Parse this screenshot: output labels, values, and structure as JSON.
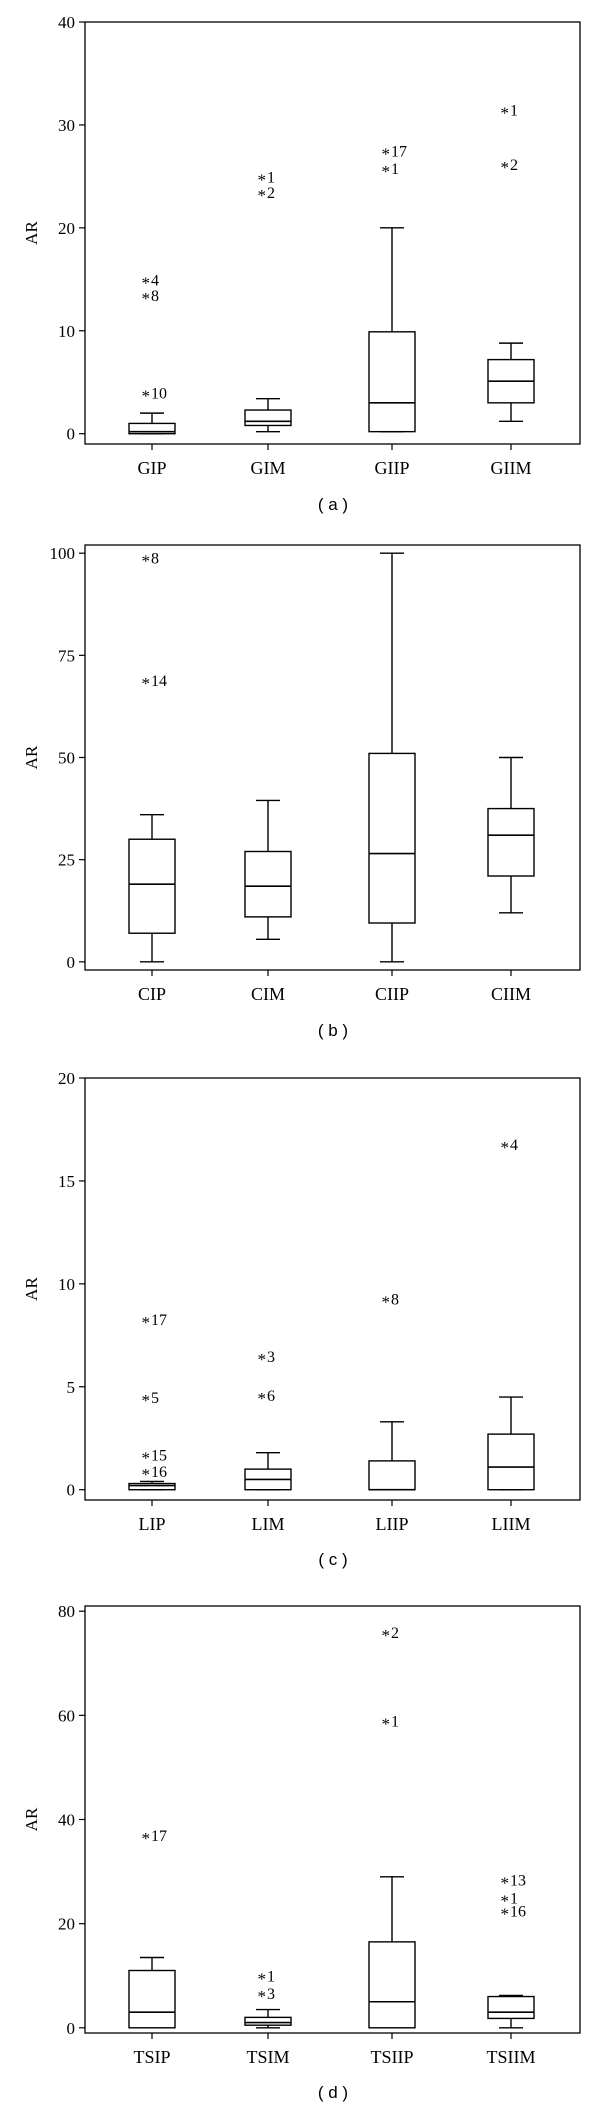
{
  "chart_data": [
    {
      "type": "boxplot",
      "panel_label": "( a )",
      "ylabel": "AR",
      "ylim": [
        -1,
        40
      ],
      "yticks": [
        0,
        10,
        20,
        30,
        40
      ],
      "categories": [
        "GIP",
        "GIM",
        "GIIP",
        "GIIM"
      ],
      "boxes": [
        {
          "category": "GIP",
          "whisker_low": 0,
          "q1": 0,
          "median": 0.2,
          "q3": 1,
          "whisker_high": 2
        },
        {
          "category": "GIM",
          "whisker_low": 0.2,
          "q1": 0.8,
          "median": 1.2,
          "q3": 2.3,
          "whisker_high": 3.4
        },
        {
          "category": "GIIP",
          "whisker_low": 0.2,
          "q1": 0.2,
          "median": 3,
          "q3": 9.9,
          "whisker_high": 20
        },
        {
          "category": "GIIM",
          "whisker_low": 1.2,
          "q1": 3,
          "median": 5.1,
          "q3": 7.2,
          "whisker_high": 8.8
        }
      ],
      "outliers": [
        {
          "category": "GIP",
          "value": 15,
          "label": "4"
        },
        {
          "category": "GIP",
          "value": 13.5,
          "label": "8"
        },
        {
          "category": "GIP",
          "value": 4,
          "label": "10"
        },
        {
          "category": "GIM",
          "value": 25,
          "label": "1"
        },
        {
          "category": "GIM",
          "value": 23.5,
          "label": "2"
        },
        {
          "category": "GIIP",
          "value": 27.5,
          "label": "17"
        },
        {
          "category": "GIIP",
          "value": 25.8,
          "label": "1"
        },
        {
          "category": "GIIM",
          "value": 31.5,
          "label": "1"
        },
        {
          "category": "GIIM",
          "value": 26.2,
          "label": "2"
        }
      ]
    },
    {
      "type": "boxplot",
      "panel_label": "( b )",
      "ylabel": "AR",
      "ylim": [
        -2,
        102
      ],
      "yticks": [
        0,
        25,
        50,
        75,
        100
      ],
      "categories": [
        "CIP",
        "CIM",
        "CIIP",
        "CIIM"
      ],
      "boxes": [
        {
          "category": "CIP",
          "whisker_low": 0,
          "q1": 7,
          "median": 19,
          "q3": 30,
          "whisker_high": 36
        },
        {
          "category": "CIM",
          "whisker_low": 5.5,
          "q1": 11,
          "median": 18.5,
          "q3": 27,
          "whisker_high": 39.5
        },
        {
          "category": "CIIP",
          "whisker_low": 0,
          "q1": 9.5,
          "median": 26.5,
          "q3": 51,
          "whisker_high": 100
        },
        {
          "category": "CIIM",
          "whisker_low": 12,
          "q1": 21,
          "median": 31,
          "q3": 37.5,
          "whisker_high": 50
        }
      ],
      "outliers": [
        {
          "category": "CIP",
          "value": 99,
          "label": "8"
        },
        {
          "category": "CIP",
          "value": 69,
          "label": "14"
        }
      ]
    },
    {
      "type": "boxplot",
      "panel_label": "( c )",
      "ylabel": "AR",
      "ylim": [
        -0.5,
        20
      ],
      "yticks": [
        0,
        5,
        10,
        15,
        20
      ],
      "categories": [
        "LIP",
        "LIM",
        "LIIP",
        "LIIM"
      ],
      "boxes": [
        {
          "category": "LIP",
          "whisker_low": 0,
          "q1": 0,
          "median": 0.2,
          "q3": 0.3,
          "whisker_high": 0.4
        },
        {
          "category": "LIM",
          "whisker_low": 0,
          "q1": 0,
          "median": 0.5,
          "q3": 1,
          "whisker_high": 1.8
        },
        {
          "category": "LIIP",
          "whisker_low": 0,
          "q1": 0,
          "median": 0,
          "q3": 1.4,
          "whisker_high": 3.3
        },
        {
          "category": "LIIM",
          "whisker_low": 0,
          "q1": 0,
          "median": 1.1,
          "q3": 2.7,
          "whisker_high": 4.5
        }
      ],
      "outliers": [
        {
          "category": "LIP",
          "value": 8.3,
          "label": "17"
        },
        {
          "category": "LIP",
          "value": 4.5,
          "label": "5"
        },
        {
          "category": "LIP",
          "value": 1.7,
          "label": "15"
        },
        {
          "category": "LIP",
          "value": 0.9,
          "label": "16"
        },
        {
          "category": "LIM",
          "value": 6.5,
          "label": "3"
        },
        {
          "category": "LIM",
          "value": 4.6,
          "label": "6"
        },
        {
          "category": "LIIP",
          "value": 9.3,
          "label": "8"
        },
        {
          "category": "LIIM",
          "value": 16.8,
          "label": "4"
        }
      ]
    },
    {
      "type": "boxplot",
      "panel_label": "( d )",
      "ylabel": "AR",
      "ylim": [
        -1,
        81
      ],
      "yticks": [
        0,
        20,
        40,
        60,
        80
      ],
      "categories": [
        "TSIP",
        "TSIM",
        "TSIIP",
        "TSIIM"
      ],
      "boxes": [
        {
          "category": "TSIP",
          "whisker_low": 0,
          "q1": 0,
          "median": 3,
          "q3": 11,
          "whisker_high": 13.5
        },
        {
          "category": "TSIM",
          "whisker_low": 0,
          "q1": 0.5,
          "median": 1,
          "q3": 2,
          "whisker_high": 3.5
        },
        {
          "category": "TSIIP",
          "whisker_low": 0,
          "q1": 0,
          "median": 5,
          "q3": 16.5,
          "whisker_high": 29
        },
        {
          "category": "TSIIM",
          "whisker_low": 0,
          "q1": 1.8,
          "median": 3,
          "q3": 6,
          "whisker_high": 6.2
        }
      ],
      "outliers": [
        {
          "category": "TSIP",
          "value": 37,
          "label": "17"
        },
        {
          "category": "TSIM",
          "value": 10,
          "label": "1"
        },
        {
          "category": "TSIM",
          "value": 6.7,
          "label": "3"
        },
        {
          "category": "TSIIP",
          "value": 76,
          "label": "2"
        },
        {
          "category": "TSIIP",
          "value": 59,
          "label": "1"
        },
        {
          "category": "TSIIM",
          "value": 28.5,
          "label": "13"
        },
        {
          "category": "TSIIM",
          "value": 25,
          "label": "1"
        },
        {
          "category": "TSIIM",
          "value": 22.5,
          "label": "16"
        }
      ]
    }
  ]
}
